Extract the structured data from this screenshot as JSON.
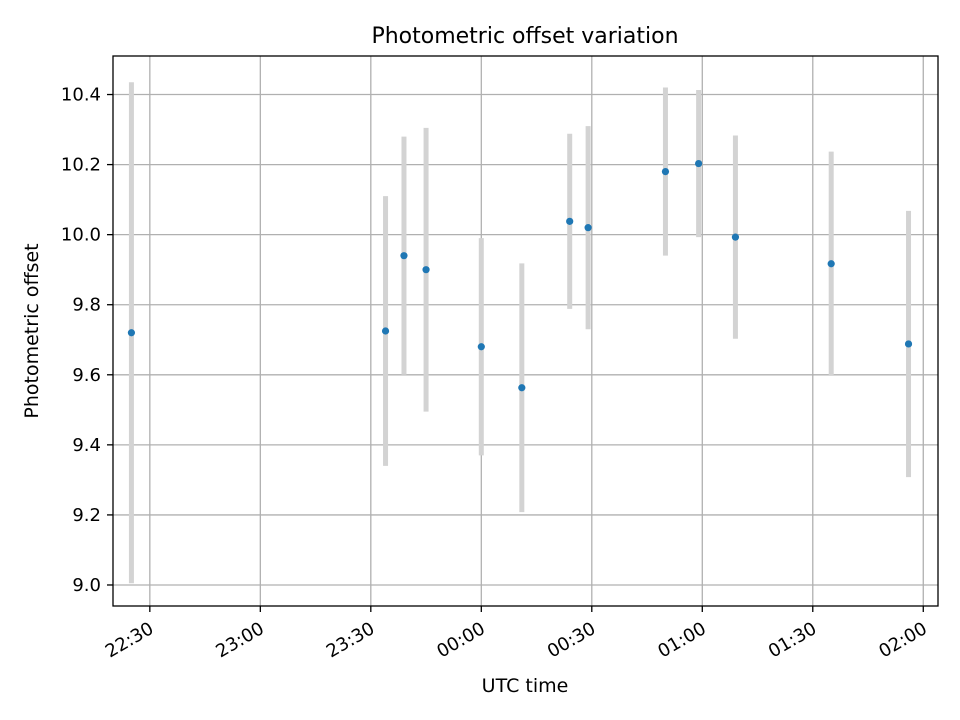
{
  "chart_data": {
    "type": "scatter",
    "title": "Photometric offset variation",
    "xlabel": "UTC time",
    "ylabel": "Photometric offset",
    "x_axis_kind": "time",
    "x_ticks": [
      "22:30",
      "23:00",
      "23:30",
      "00:00",
      "00:30",
      "01:00",
      "01:30",
      "02:00"
    ],
    "y_ticks": [
      "9.0",
      "9.2",
      "9.4",
      "9.6",
      "9.8",
      "10.0",
      "10.2",
      "10.4"
    ],
    "xlim": [
      "22:20",
      "02:04"
    ],
    "ylim": [
      8.94,
      10.51
    ],
    "grid": true,
    "colors": {
      "points": "#1f77b4",
      "error_bars": "#d3d3d3",
      "grid": "#b0b0b0"
    },
    "series": [
      {
        "x": [
          "22:25",
          "23:34",
          "23:39",
          "23:45",
          "00:00",
          "00:11",
          "00:24",
          "00:29",
          "00:50",
          "00:59",
          "01:09",
          "01:35",
          "01:56"
        ],
        "y": [
          9.72,
          9.725,
          9.94,
          9.9,
          9.68,
          9.563,
          10.038,
          10.02,
          10.18,
          10.203,
          9.993,
          9.917,
          9.688
        ],
        "yerr": [
          0.715,
          0.385,
          0.34,
          0.405,
          0.31,
          0.355,
          0.25,
          0.29,
          0.24,
          0.21,
          0.29,
          0.32,
          0.38
        ]
      }
    ]
  }
}
